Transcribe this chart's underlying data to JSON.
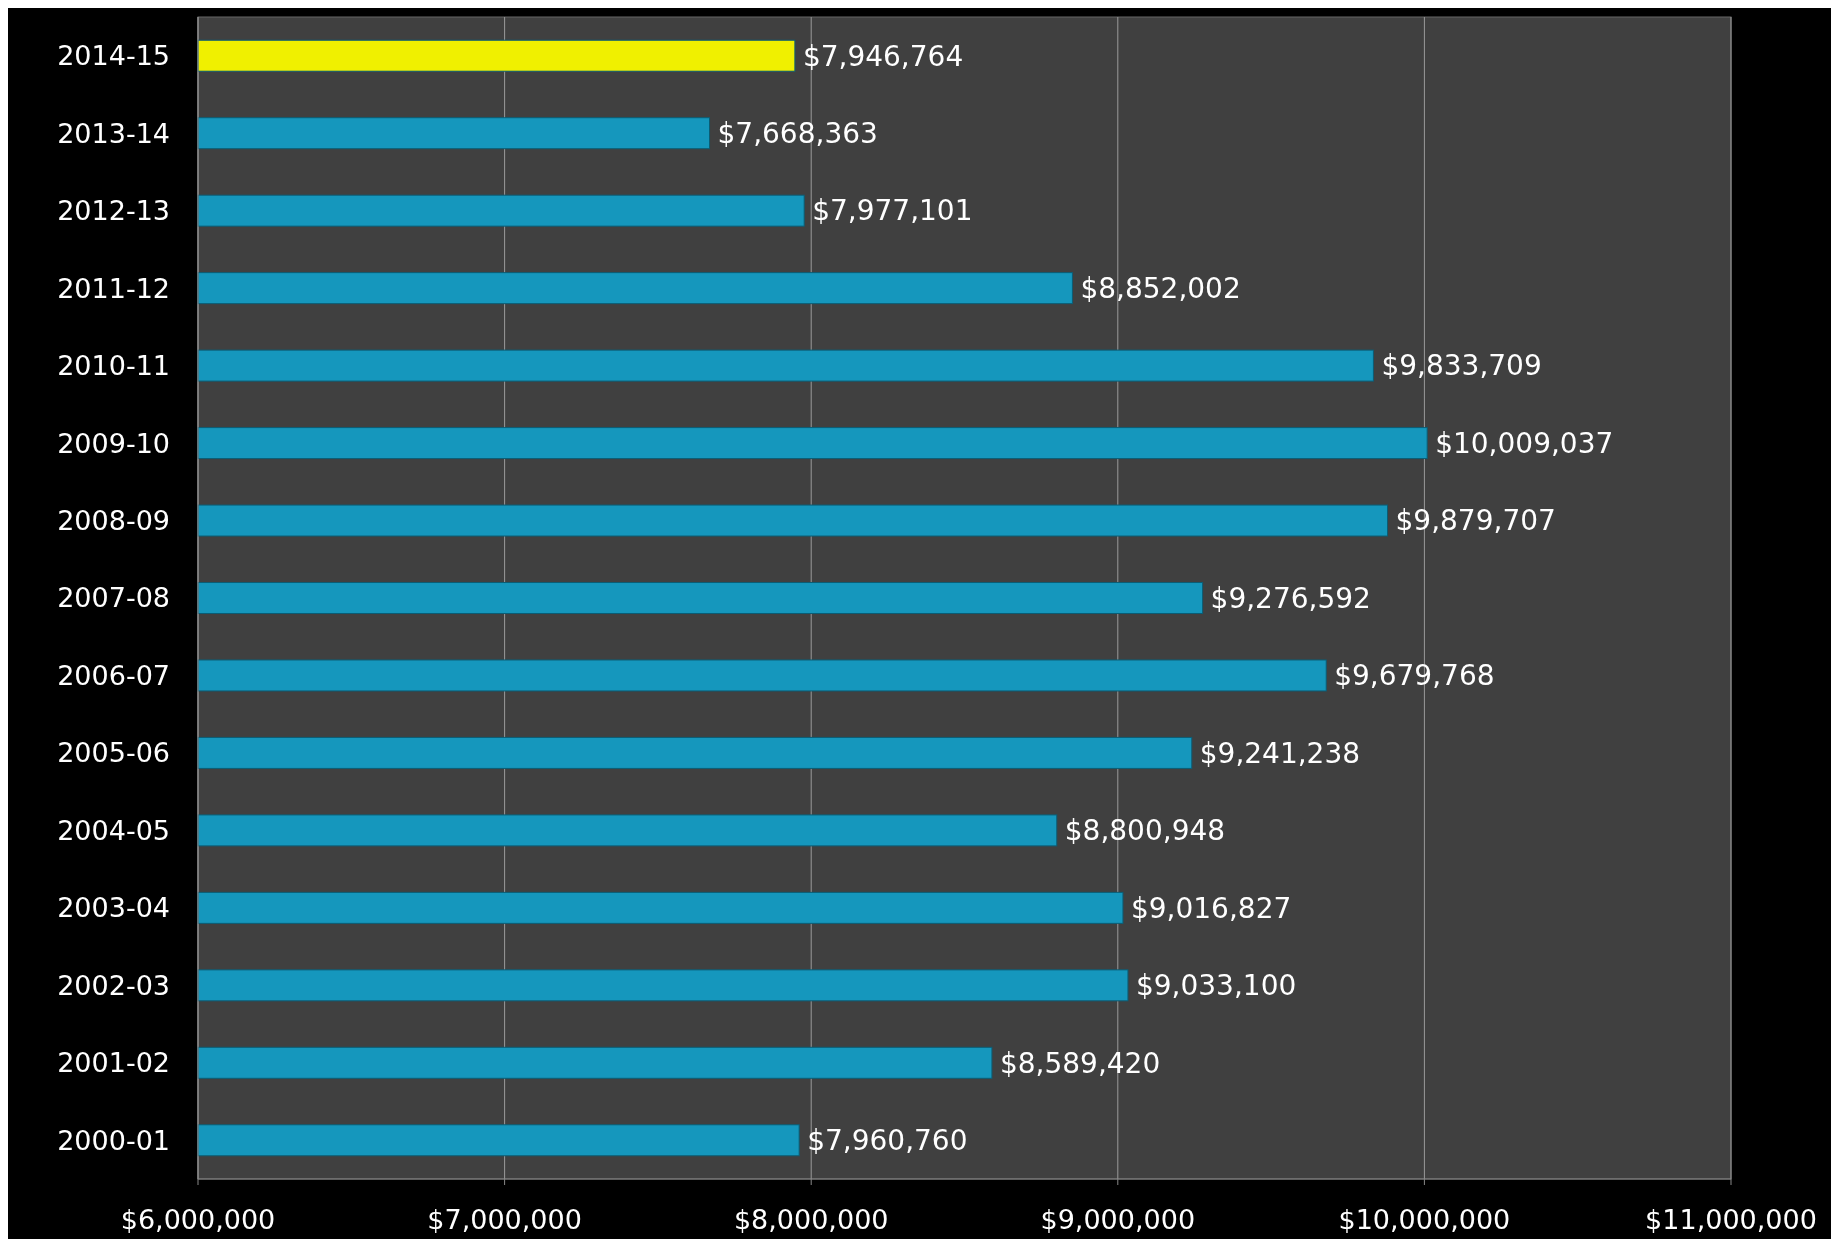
{
  "chart_data": {
    "type": "bar",
    "orientation": "horizontal",
    "categories": [
      "2014-15",
      "2013-14",
      "2012-13",
      "2011-12",
      "2010-11",
      "2009-10",
      "2008-09",
      "2007-08",
      "2006-07",
      "2005-06",
      "2004-05",
      "2003-04",
      "2002-03",
      "2001-02",
      "2000-01"
    ],
    "values": [
      7946764,
      7668363,
      7977101,
      8852002,
      9833709,
      10009037,
      9879707,
      9276592,
      9679768,
      9241238,
      8800948,
      9016827,
      9033100,
      8589420,
      7960760
    ],
    "colors": [
      "#f0f000",
      "#1597bd",
      "#1597bd",
      "#1597bd",
      "#1597bd",
      "#1597bd",
      "#1597bd",
      "#1597bd",
      "#1597bd",
      "#1597bd",
      "#1597bd",
      "#1597bd",
      "#1597bd",
      "#1597bd",
      "#1597bd"
    ],
    "value_labels": [
      "$7,946,764",
      "$7,668,363",
      "$7,977,101",
      "$8,852,002",
      "$9,833,709",
      "$10,009,037",
      "$9,879,707",
      "$9,276,592",
      "$9,679,768",
      "$9,241,238",
      "$8,800,948",
      "$9,016,827",
      "$9,033,100",
      "$8,589,420",
      "$7,960,760"
    ],
    "xlim": [
      6000000,
      11000000
    ],
    "xticks": [
      {
        "value": 6000000,
        "label": "$6,000,000"
      },
      {
        "value": 7000000,
        "label": "$7,000,000"
      },
      {
        "value": 8000000,
        "label": "$8,000,000"
      },
      {
        "value": 9000000,
        "label": "$9,000,000"
      },
      {
        "value": 10000000,
        "label": "$10,000,000"
      },
      {
        "value": 11000000,
        "label": "$11,000,000"
      }
    ],
    "grid": "x"
  }
}
